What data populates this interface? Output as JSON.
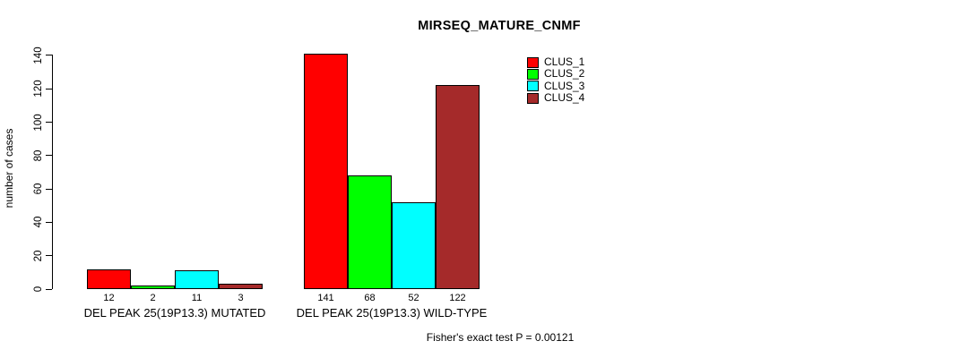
{
  "chart_data": {
    "type": "bar",
    "title": "MIRSEQ_MATURE_CNMF",
    "ylabel": "number of cases",
    "xlabel": "",
    "ylim": [
      0,
      140
    ],
    "yticks": [
      0,
      20,
      40,
      60,
      80,
      100,
      120,
      140
    ],
    "grid": false,
    "legend_position": "top-right",
    "categories": [
      "DEL PEAK 25(19P13.3) MUTATED",
      "DEL PEAK 25(19P13.3) WILD-TYPE"
    ],
    "series": [
      {
        "name": "CLUS_1",
        "color": "#FF0000",
        "values": [
          12,
          141
        ]
      },
      {
        "name": "CLUS_2",
        "color": "#00FF00",
        "values": [
          2,
          68
        ]
      },
      {
        "name": "CLUS_3",
        "color": "#00FFFF",
        "values": [
          11,
          52
        ]
      },
      {
        "name": "CLUS_4",
        "color": "#A52A2A",
        "values": [
          3,
          122
        ]
      }
    ],
    "bar_value_labels": [
      [
        "12",
        "2",
        "11",
        "3"
      ],
      [
        "141",
        "68",
        "52",
        "122"
      ]
    ],
    "footnote": "Fisher's exact test P = 0.00121"
  }
}
